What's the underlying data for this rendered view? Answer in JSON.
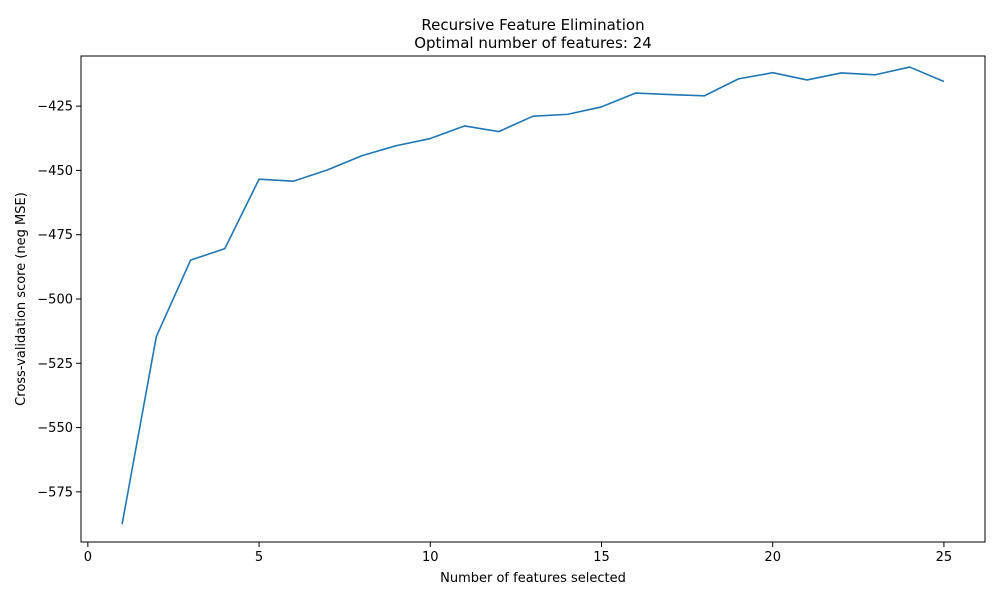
{
  "chart_data": {
    "type": "line",
    "title": "Recursive Feature Elimination",
    "subtitle": "Optimal number of features: 24",
    "xlabel": "Number of features selected",
    "ylabel": "Cross-validation score (neg MSE)",
    "xlim": [
      -0.2,
      26.2
    ],
    "ylim": [
      -594.5,
      -405.5
    ],
    "xticks": [
      0,
      5,
      10,
      15,
      20,
      25
    ],
    "yticks": [
      -575,
      -550,
      -525,
      -500,
      -475,
      -450,
      -425
    ],
    "grid": false,
    "line_color": "#1f77b4",
    "series": [
      {
        "x": [
          1,
          2,
          3,
          4,
          5,
          6,
          7,
          8,
          9,
          10,
          11,
          12,
          13,
          14,
          15,
          16,
          17,
          18,
          19,
          20,
          21,
          22,
          23,
          24,
          25
        ],
        "values": [
          -587.6,
          -514.6,
          -484.9,
          -480.4,
          -453.4,
          -454.2,
          -449.8,
          -444.3,
          -440.4,
          -437.6,
          -432.7,
          -434.9,
          -428.9,
          -428.2,
          -425.3,
          -419.9,
          -420.5,
          -421.0,
          -414.4,
          -412.0,
          -414.8,
          -412.1,
          -412.8,
          -409.8,
          -415.4
        ]
      }
    ]
  }
}
